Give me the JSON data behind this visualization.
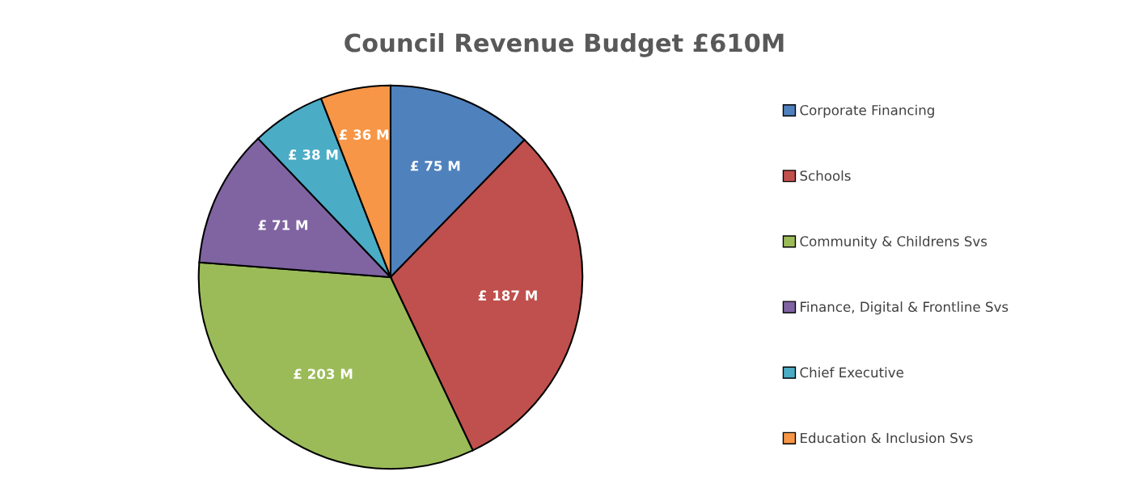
{
  "chart_data": {
    "type": "pie",
    "title": "Council Revenue Budget £610M",
    "categories": [
      "Corporate Financing",
      "Schools",
      "Community & Childrens Svs",
      "Finance, Digital & Frontline Svs",
      "Chief Executive",
      "Education & Inclusion Svs"
    ],
    "values": [
      75,
      187,
      203,
      71,
      38,
      36
    ],
    "value_labels": [
      "£ 75 M",
      "£ 187 M",
      "£ 203 M",
      "£ 71 M",
      "£ 38 M",
      "£ 36 M"
    ],
    "colors": [
      "#4f81bd",
      "#c0504d",
      "#9bbb59",
      "#8064a2",
      "#4bacc6",
      "#f79646"
    ],
    "legend": "right"
  }
}
